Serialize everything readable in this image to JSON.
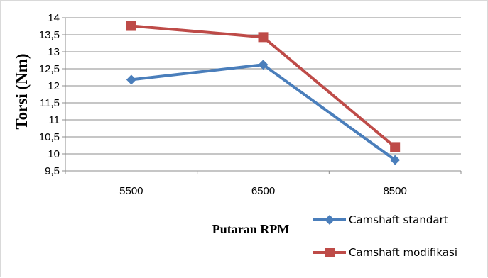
{
  "chart_data": {
    "type": "line",
    "title": "",
    "xlabel": "Putaran RPM",
    "ylabel": "Torsi (Nm)",
    "categories": [
      "5500",
      "6500",
      "8500"
    ],
    "ylim": [
      9.5,
      14
    ],
    "yticks": [
      "14",
      "13,5",
      "13",
      "12,5",
      "12",
      "11,5",
      "11",
      "10,5",
      "10",
      "9,5"
    ],
    "ytick_values": [
      14,
      13.5,
      13,
      12.5,
      12,
      11.5,
      11,
      10.5,
      10,
      9.5
    ],
    "grid": true,
    "legend_placement": "bottom-right",
    "series": [
      {
        "name": "Camshaft standart",
        "values": [
          12.18,
          12.62,
          9.82
        ],
        "color": "#4a7ebb",
        "marker": "diamond"
      },
      {
        "name": "Camshaft modifikasi",
        "values": [
          13.76,
          13.43,
          10.2
        ],
        "color": "#be4b48",
        "marker": "square"
      }
    ]
  }
}
